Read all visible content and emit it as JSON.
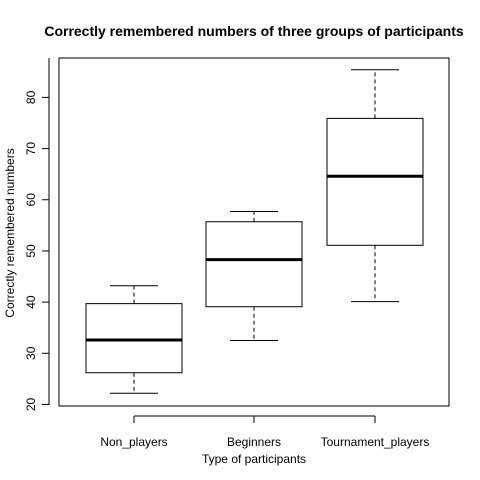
{
  "chart_data": {
    "type": "boxplot",
    "title": "Correctly remembered numbers of three groups of participants",
    "xlabel": "Type of participants",
    "ylabel": "Correctly remembered numbers",
    "categories": [
      "Non_players",
      "Beginners",
      "Tournament_players"
    ],
    "boxes": [
      {
        "name": "Non_players",
        "min": 22.2,
        "q1": 26.2,
        "median": 32.6,
        "q3": 39.7,
        "max": 43.2
      },
      {
        "name": "Beginners",
        "min": 32.5,
        "q1": 39.1,
        "median": 48.3,
        "q3": 55.7,
        "max": 57.7
      },
      {
        "name": "Tournament_players",
        "min": 40.1,
        "q1": 51.1,
        "median": 64.6,
        "q3": 75.9,
        "max": 85.4
      }
    ],
    "ylim": [
      19.7,
      87.7
    ],
    "yticks": [
      20,
      30,
      40,
      50,
      60,
      70,
      80
    ],
    "grid": false,
    "legend": "none"
  }
}
